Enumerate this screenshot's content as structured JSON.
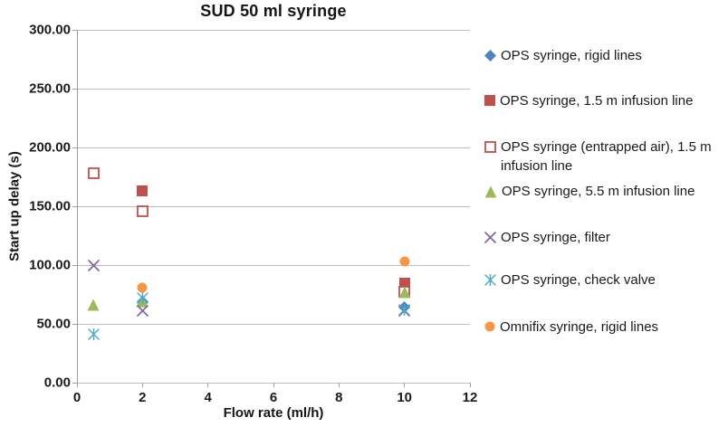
{
  "chart_data": {
    "type": "scatter",
    "title": "SUD 50 ml syringe",
    "xlabel": "Flow rate (ml/h)",
    "ylabel": "Start up delay (s)",
    "xlim": [
      0,
      12
    ],
    "ylim": [
      0,
      300
    ],
    "grid": "horizontal-only",
    "legend_position": "right",
    "x_ticks": [
      {
        "v": 0,
        "label": "0"
      },
      {
        "v": 2,
        "label": "2"
      },
      {
        "v": 4,
        "label": "4"
      },
      {
        "v": 6,
        "label": "6"
      },
      {
        "v": 8,
        "label": "8"
      },
      {
        "v": 10,
        "label": "10"
      },
      {
        "v": 12,
        "label": "12"
      }
    ],
    "y_ticks": [
      {
        "v": 0,
        "label": "0.00"
      },
      {
        "v": 50,
        "label": "50.00"
      },
      {
        "v": 100,
        "label": "100.00"
      },
      {
        "v": 150,
        "label": "150.00"
      },
      {
        "v": 200,
        "label": "200.00"
      },
      {
        "v": 250,
        "label": "250.00"
      },
      {
        "v": 300,
        "label": "300.00"
      }
    ],
    "series": [
      {
        "name": "OPS syringe, rigid lines",
        "marker": "diamond",
        "color": "#4F81BD",
        "points": [
          [
            2,
            69
          ],
          [
            10,
            64
          ]
        ]
      },
      {
        "name": "OPS syringe, 1.5 m infusion line",
        "marker": "square",
        "color": "#C0504D",
        "points": [
          [
            2,
            163
          ],
          [
            10,
            85
          ]
        ]
      },
      {
        "name": "OPS syringe (entrapped air), 1.5 m infusion line",
        "marker": "square-open",
        "color": "#C0504D",
        "points": [
          [
            0.5,
            178
          ],
          [
            2,
            146
          ],
          [
            10,
            77
          ]
        ]
      },
      {
        "name": "OPS syringe, 5.5 m infusion line",
        "marker": "triangle",
        "color": "#9BBB59",
        "points": [
          [
            0.5,
            66
          ],
          [
            2,
            69
          ],
          [
            10,
            77
          ]
        ]
      },
      {
        "name": "OPS syringe, filter",
        "marker": "x",
        "color": "#8064A2",
        "points": [
          [
            0.5,
            100
          ],
          [
            2,
            61
          ],
          [
            10,
            61
          ]
        ]
      },
      {
        "name": "OPS syringe, check valve",
        "marker": "asterisk",
        "color": "#4BACC6",
        "points": [
          [
            0.5,
            41
          ],
          [
            2,
            72
          ],
          [
            10,
            62
          ]
        ]
      },
      {
        "name": "Omnifix syringe, rigid lines",
        "marker": "circle",
        "color": "#F79646",
        "points": [
          [
            2,
            81
          ],
          [
            10,
            103
          ]
        ]
      }
    ]
  }
}
